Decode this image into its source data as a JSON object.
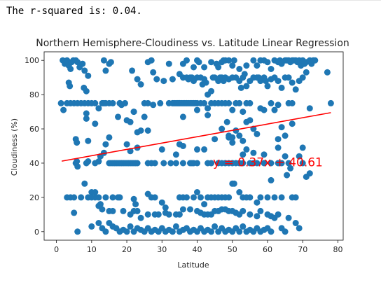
{
  "output": {
    "text": "The r-squared is: 0.04."
  },
  "colors": {
    "points": "#1f77b4",
    "regression_line": "#ff0000",
    "annotation": "#ff0000",
    "axes": "#262626"
  },
  "chart_data": {
    "type": "scatter",
    "title": "Northern Hemisphere-Cloudiness vs. Latitude Linear Regression",
    "xlabel": "Latitude",
    "ylabel": "Cloudiness (%)",
    "xlim": [
      -3.5,
      81.5
    ],
    "ylim": [
      -5,
      105
    ],
    "x_ticks": [
      "0",
      "10",
      "20",
      "30",
      "40",
      "50",
      "60",
      "70",
      "80"
    ],
    "y_ticks": [
      "0",
      "20",
      "40",
      "60",
      "80",
      "100"
    ],
    "grid": false,
    "legend": "none",
    "regression": {
      "slope": 0.37,
      "intercept": 40.61,
      "x_range": [
        1.5,
        78
      ],
      "label": "y = 0.37x + 40.61",
      "label_position": [
        44.5,
        40.5
      ]
    },
    "points": [
      [
        1.8,
        100
      ],
      [
        2.4,
        98
      ],
      [
        3,
        100
      ],
      [
        3.5,
        97
      ],
      [
        4,
        95
      ],
      [
        4.3,
        99
      ],
      [
        4.8,
        100
      ],
      [
        5.5,
        100
      ],
      [
        6,
        99
      ],
      [
        6.6,
        96
      ],
      [
        7.4,
        98
      ],
      [
        8,
        94
      ],
      [
        9,
        91
      ],
      [
        13.5,
        100
      ],
      [
        14,
        94
      ],
      [
        15,
        98
      ],
      [
        15.5,
        99
      ],
      [
        21.5,
        94
      ],
      [
        23,
        89
      ],
      [
        24,
        86
      ],
      [
        26,
        99
      ],
      [
        27,
        100
      ],
      [
        27.5,
        93
      ],
      [
        28.5,
        89
      ],
      [
        32,
        98
      ],
      [
        36,
        98
      ],
      [
        37,
        100
      ],
      [
        39,
        96
      ],
      [
        40,
        100
      ],
      [
        40.5,
        99
      ],
      [
        42,
        96
      ],
      [
        44,
        99
      ],
      [
        45.5,
        98
      ],
      [
        46,
        96
      ],
      [
        47,
        99
      ],
      [
        47.5,
        100
      ],
      [
        48,
        100
      ],
      [
        49,
        100
      ],
      [
        50,
        97
      ],
      [
        50.5,
        100
      ],
      [
        52,
        95
      ],
      [
        53.5,
        92
      ],
      [
        54,
        97
      ],
      [
        56,
        100
      ],
      [
        57,
        97
      ],
      [
        58,
        100
      ],
      [
        59,
        100
      ],
      [
        60,
        99
      ],
      [
        61,
        95
      ],
      [
        62,
        100
      ],
      [
        63,
        99
      ],
      [
        63.5,
        100
      ],
      [
        64,
        98
      ],
      [
        65,
        100
      ],
      [
        65.5,
        100
      ],
      [
        66,
        100
      ],
      [
        66.5,
        99
      ],
      [
        67,
        100
      ],
      [
        67.5,
        100
      ],
      [
        68,
        100
      ],
      [
        68.5,
        99
      ],
      [
        69,
        100
      ],
      [
        69.5,
        97
      ],
      [
        70,
        100
      ],
      [
        70.5,
        98
      ],
      [
        71,
        99
      ],
      [
        72,
        100
      ],
      [
        72.5,
        98
      ],
      [
        73,
        100
      ],
      [
        73.5,
        100
      ],
      [
        3.5,
        87
      ],
      [
        3.8,
        85
      ],
      [
        7.8,
        84
      ],
      [
        8.5,
        82
      ],
      [
        18,
        75
      ],
      [
        18.5,
        74
      ],
      [
        22,
        70
      ],
      [
        27.5,
        74
      ],
      [
        30.5,
        88
      ],
      [
        33,
        89
      ],
      [
        35,
        92
      ],
      [
        36,
        90
      ],
      [
        37,
        90
      ],
      [
        37.5,
        89
      ],
      [
        38,
        90
      ],
      [
        38.5,
        90
      ],
      [
        39,
        88
      ],
      [
        40,
        90
      ],
      [
        41,
        90
      ],
      [
        41.5,
        86
      ],
      [
        42,
        89
      ],
      [
        42.5,
        87
      ],
      [
        43,
        80
      ],
      [
        44,
        82
      ],
      [
        44.5,
        90
      ],
      [
        45,
        90
      ],
      [
        46,
        88
      ],
      [
        46.5,
        90
      ],
      [
        47,
        90
      ],
      [
        47.5,
        88
      ],
      [
        48,
        90
      ],
      [
        49,
        89
      ],
      [
        50,
        90
      ],
      [
        51,
        90
      ],
      [
        52,
        88
      ],
      [
        52.5,
        84
      ],
      [
        53,
        90
      ],
      [
        54,
        85
      ],
      [
        55,
        88
      ],
      [
        56,
        90
      ],
      [
        57,
        90
      ],
      [
        57.5,
        90
      ],
      [
        58,
        88
      ],
      [
        59,
        90
      ],
      [
        59.5,
        88
      ],
      [
        60,
        85
      ],
      [
        61,
        89
      ],
      [
        62,
        90
      ],
      [
        63,
        88
      ],
      [
        64,
        84
      ],
      [
        65,
        90
      ],
      [
        66,
        90
      ],
      [
        67,
        87
      ],
      [
        68,
        83
      ],
      [
        69,
        88
      ],
      [
        70,
        90
      ],
      [
        71,
        93
      ],
      [
        77,
        93
      ],
      [
        1.3,
        75
      ],
      [
        2,
        71
      ],
      [
        3,
        75
      ],
      [
        4,
        75
      ],
      [
        5,
        75
      ],
      [
        6,
        75
      ],
      [
        7,
        75
      ],
      [
        8,
        75
      ],
      [
        9,
        75
      ],
      [
        10,
        75
      ],
      [
        11,
        75
      ],
      [
        12,
        72
      ],
      [
        13,
        75
      ],
      [
        13.5,
        75
      ],
      [
        14,
        75
      ],
      [
        15,
        75
      ],
      [
        16,
        75
      ],
      [
        18,
        75
      ],
      [
        19.5,
        75
      ],
      [
        25,
        75
      ],
      [
        26,
        75
      ],
      [
        29.5,
        75
      ],
      [
        32,
        75
      ],
      [
        33,
        75
      ],
      [
        33.5,
        75
      ],
      [
        34,
        75
      ],
      [
        34.5,
        75
      ],
      [
        35,
        75
      ],
      [
        35.5,
        75
      ],
      [
        36,
        75
      ],
      [
        36.5,
        75
      ],
      [
        37,
        75
      ],
      [
        37.5,
        75
      ],
      [
        38,
        75
      ],
      [
        38.5,
        75
      ],
      [
        39,
        75
      ],
      [
        39.5,
        75
      ],
      [
        40,
        75
      ],
      [
        41,
        75
      ],
      [
        42,
        75
      ],
      [
        43,
        72
      ],
      [
        44,
        75
      ],
      [
        45,
        75
      ],
      [
        46,
        75
      ],
      [
        47,
        75
      ],
      [
        48,
        75
      ],
      [
        49,
        75
      ],
      [
        50,
        71
      ],
      [
        51,
        75
      ],
      [
        52,
        75
      ],
      [
        53,
        70
      ],
      [
        54,
        75
      ],
      [
        55,
        75
      ],
      [
        58,
        72
      ],
      [
        61,
        75
      ],
      [
        62,
        71
      ],
      [
        63,
        74
      ],
      [
        66,
        75
      ],
      [
        67,
        75
      ],
      [
        72,
        72
      ],
      [
        78,
        75
      ],
      [
        8.5,
        69
      ],
      [
        8.5,
        66
      ],
      [
        11,
        63
      ],
      [
        17.5,
        67
      ],
      [
        20,
        65
      ],
      [
        21,
        64
      ],
      [
        22,
        70
      ],
      [
        23,
        58
      ],
      [
        24,
        59
      ],
      [
        25,
        67
      ],
      [
        26,
        59
      ],
      [
        36,
        67
      ],
      [
        40,
        71
      ],
      [
        43,
        68
      ],
      [
        47,
        60
      ],
      [
        48.5,
        64
      ],
      [
        49,
        55
      ],
      [
        50,
        52
      ],
      [
        53,
        53
      ],
      [
        54,
        64
      ],
      [
        55,
        65
      ],
      [
        56,
        60
      ],
      [
        57,
        57
      ],
      [
        59,
        71
      ],
      [
        63,
        54
      ],
      [
        64,
        61
      ],
      [
        67,
        63
      ],
      [
        69,
        44
      ],
      [
        70,
        49
      ],
      [
        5.5,
        54
      ],
      [
        5.8,
        52
      ],
      [
        9,
        53
      ],
      [
        14,
        51
      ],
      [
        15,
        55
      ],
      [
        20,
        51
      ],
      [
        21,
        47
      ],
      [
        23,
        49
      ],
      [
        30,
        48
      ],
      [
        34,
        45
      ],
      [
        35,
        51
      ],
      [
        36,
        50
      ],
      [
        40,
        48
      ],
      [
        42,
        48
      ],
      [
        45,
        54
      ],
      [
        49,
        56
      ],
      [
        50,
        55
      ],
      [
        51,
        59
      ],
      [
        52,
        56
      ],
      [
        53,
        45
      ],
      [
        54,
        48
      ],
      [
        56,
        46
      ],
      [
        59,
        45
      ],
      [
        63,
        49
      ],
      [
        65,
        56
      ],
      [
        5.5,
        40
      ],
      [
        5.8,
        41
      ],
      [
        6,
        38
      ],
      [
        8.5,
        40
      ],
      [
        9,
        41
      ],
      [
        11,
        40
      ],
      [
        12,
        41
      ],
      [
        12.5,
        44
      ],
      [
        13.5,
        46
      ],
      [
        15,
        40
      ],
      [
        15.5,
        40
      ],
      [
        16,
        40
      ],
      [
        16.5,
        40
      ],
      [
        17,
        40
      ],
      [
        17.5,
        40
      ],
      [
        18,
        40
      ],
      [
        18.5,
        40
      ],
      [
        19,
        40
      ],
      [
        19.5,
        40
      ],
      [
        20,
        40
      ],
      [
        20.5,
        40
      ],
      [
        21,
        40
      ],
      [
        21.5,
        40
      ],
      [
        22,
        40
      ],
      [
        22.5,
        40
      ],
      [
        23,
        40
      ],
      [
        26,
        40
      ],
      [
        27,
        40
      ],
      [
        28,
        40
      ],
      [
        30.5,
        40
      ],
      [
        32.5,
        40
      ],
      [
        34,
        40
      ],
      [
        36,
        40
      ],
      [
        38,
        40
      ],
      [
        38.5,
        40
      ],
      [
        39,
        40
      ],
      [
        40,
        40
      ],
      [
        43,
        40
      ],
      [
        44,
        40
      ],
      [
        46,
        40
      ],
      [
        47,
        40
      ],
      [
        48,
        40
      ],
      [
        49,
        40
      ],
      [
        50,
        40
      ],
      [
        51,
        40
      ],
      [
        52,
        40
      ],
      [
        53,
        40
      ],
      [
        55,
        40
      ],
      [
        56,
        40
      ],
      [
        57,
        40
      ],
      [
        59,
        40
      ],
      [
        61,
        40
      ],
      [
        63,
        40
      ],
      [
        64,
        40
      ],
      [
        66,
        40
      ],
      [
        66.5,
        37
      ],
      [
        71,
        32
      ],
      [
        72,
        34
      ],
      [
        68,
        20
      ],
      [
        65,
        44
      ],
      [
        65.5,
        33
      ],
      [
        61,
        30
      ],
      [
        8,
        28
      ],
      [
        10,
        23
      ],
      [
        11,
        23
      ],
      [
        12,
        20
      ],
      [
        14,
        20
      ],
      [
        16,
        20
      ],
      [
        17.5,
        20
      ],
      [
        18,
        20
      ],
      [
        22,
        19
      ],
      [
        22.5,
        16
      ],
      [
        26,
        22
      ],
      [
        27,
        20
      ],
      [
        28,
        20
      ],
      [
        30,
        17
      ],
      [
        31,
        14
      ],
      [
        35,
        20
      ],
      [
        36,
        20
      ],
      [
        37,
        20
      ],
      [
        39,
        20
      ],
      [
        40,
        23
      ],
      [
        41,
        20
      ],
      [
        42,
        16
      ],
      [
        43,
        20
      ],
      [
        44,
        20
      ],
      [
        45,
        20
      ],
      [
        46,
        20
      ],
      [
        47,
        20
      ],
      [
        48,
        20
      ],
      [
        49,
        20
      ],
      [
        50,
        28
      ],
      [
        50.5,
        28
      ],
      [
        52,
        23
      ],
      [
        53,
        20
      ],
      [
        54,
        20
      ],
      [
        55,
        20
      ],
      [
        57,
        17
      ],
      [
        58,
        20
      ],
      [
        60,
        20
      ],
      [
        62,
        20
      ],
      [
        64,
        20
      ],
      [
        67,
        20
      ],
      [
        3,
        20
      ],
      [
        4,
        20
      ],
      [
        5,
        20
      ],
      [
        7,
        20
      ],
      [
        9,
        20
      ],
      [
        10,
        20
      ],
      [
        11,
        20
      ],
      [
        12,
        15
      ],
      [
        12.5,
        16
      ],
      [
        13,
        13
      ],
      [
        15,
        12
      ],
      [
        16,
        12
      ],
      [
        19,
        12
      ],
      [
        21,
        10
      ],
      [
        22,
        12
      ],
      [
        23,
        12
      ],
      [
        24,
        8
      ],
      [
        26,
        10
      ],
      [
        28,
        10
      ],
      [
        29,
        10
      ],
      [
        31,
        11
      ],
      [
        32,
        10
      ],
      [
        34,
        10
      ],
      [
        35,
        10
      ],
      [
        36,
        13
      ],
      [
        38,
        13
      ],
      [
        40,
        12
      ],
      [
        41,
        11
      ],
      [
        42,
        10
      ],
      [
        43,
        10
      ],
      [
        44,
        10
      ],
      [
        45,
        12
      ],
      [
        46,
        12
      ],
      [
        47,
        13
      ],
      [
        48,
        13
      ],
      [
        49,
        12
      ],
      [
        50,
        12
      ],
      [
        51,
        11
      ],
      [
        52,
        10
      ],
      [
        53,
        12
      ],
      [
        55,
        10
      ],
      [
        57,
        9
      ],
      [
        58,
        12
      ],
      [
        60,
        10
      ],
      [
        61,
        9
      ],
      [
        62,
        8
      ],
      [
        63,
        10
      ],
      [
        66,
        8
      ],
      [
        5,
        11
      ],
      [
        6,
        0
      ],
      [
        10,
        3
      ],
      [
        12,
        5
      ],
      [
        13,
        2
      ],
      [
        14,
        0
      ],
      [
        15,
        5
      ],
      [
        16,
        3
      ],
      [
        17,
        2
      ],
      [
        18,
        0
      ],
      [
        19,
        1
      ],
      [
        20,
        0
      ],
      [
        21,
        3
      ],
      [
        22,
        0
      ],
      [
        23,
        2
      ],
      [
        24,
        1
      ],
      [
        25,
        0
      ],
      [
        26,
        2
      ],
      [
        27,
        0
      ],
      [
        28,
        1
      ],
      [
        29,
        0
      ],
      [
        30,
        2
      ],
      [
        31,
        0
      ],
      [
        32,
        1
      ],
      [
        33,
        0
      ],
      [
        34,
        3
      ],
      [
        35,
        0
      ],
      [
        36,
        1
      ],
      [
        37,
        2
      ],
      [
        38,
        0
      ],
      [
        39,
        1
      ],
      [
        40,
        0
      ],
      [
        41,
        2
      ],
      [
        42,
        0
      ],
      [
        43,
        1
      ],
      [
        44,
        0
      ],
      [
        45,
        3
      ],
      [
        46,
        0
      ],
      [
        47,
        2
      ],
      [
        48,
        0
      ],
      [
        49,
        1
      ],
      [
        50,
        0
      ],
      [
        51,
        2
      ],
      [
        52,
        0
      ],
      [
        53,
        3
      ],
      [
        54,
        0
      ],
      [
        55,
        1
      ],
      [
        56,
        0
      ],
      [
        57,
        2
      ],
      [
        58,
        0
      ],
      [
        59,
        1
      ],
      [
        60,
        2
      ],
      [
        61,
        0
      ],
      [
        64,
        2
      ],
      [
        65,
        0
      ],
      [
        68,
        5
      ],
      [
        69,
        2
      ],
      [
        70,
        40
      ]
    ]
  }
}
